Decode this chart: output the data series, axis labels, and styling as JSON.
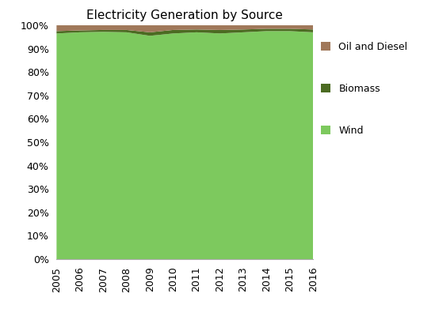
{
  "title": "Electricity Generation by Source",
  "years": [
    2005,
    2006,
    2007,
    2008,
    2009,
    2010,
    2011,
    2012,
    2013,
    2014,
    2015,
    2016
  ],
  "wind": [
    96.5,
    97.0,
    97.2,
    97.0,
    95.5,
    96.5,
    97.0,
    96.5,
    97.0,
    97.5,
    97.5,
    97.0
  ],
  "biomass": [
    1.0,
    0.8,
    0.8,
    1.0,
    1.5,
    1.5,
    1.2,
    1.5,
    1.2,
    1.0,
    1.0,
    1.2
  ],
  "oil": [
    2.5,
    2.2,
    2.0,
    2.0,
    3.0,
    2.0,
    1.8,
    2.0,
    1.8,
    1.5,
    1.5,
    1.8
  ],
  "wind_color": "#7DC95E",
  "biomass_color": "#4C6B22",
  "oil_color": "#A0785A",
  "background_color": "#ffffff",
  "ylim": [
    0,
    100
  ],
  "figsize": [
    5.49,
    4.0
  ],
  "dpi": 100
}
